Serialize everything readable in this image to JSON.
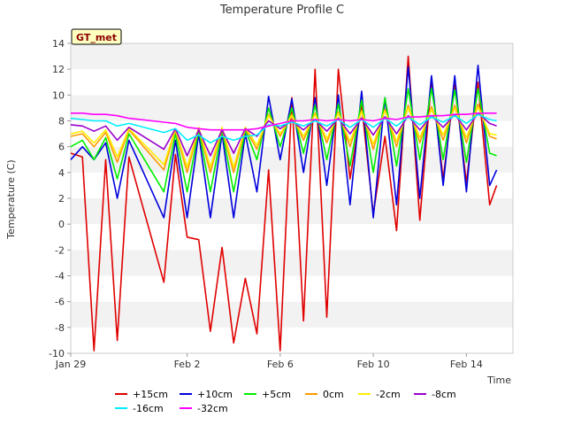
{
  "chart_data": {
    "type": "line",
    "title": "Temperature Profile C",
    "xlabel": "Time",
    "ylabel": "Temperature (C)",
    "badge": "GT_met",
    "x_unit": "date",
    "x_range": [
      "Jan 29",
      "Feb 16"
    ],
    "ylim": [
      -10,
      14
    ],
    "yticks": [
      -10,
      -8,
      -6,
      -4,
      -2,
      0,
      2,
      4,
      6,
      8,
      10,
      12,
      14
    ],
    "xticks": [
      "Jan 29",
      "Feb 2",
      "Feb 6",
      "Feb 10",
      "Feb 14"
    ],
    "grid": "horizontal bands",
    "legend_position": "bottom",
    "x": [
      "Jan 29",
      "Jan 29.5",
      "Jan 30",
      "Jan 30.5",
      "Jan 31",
      "Jan 31.5",
      "Feb 1",
      "Feb 1.5",
      "Feb 2",
      "Feb 2.5",
      "Feb 3",
      "Feb 3.5",
      "Feb 4",
      "Feb 4.5",
      "Feb 5",
      "Feb 5.5",
      "Feb 6",
      "Feb 6.5",
      "Feb 7",
      "Feb 7.5",
      "Feb 8",
      "Feb 8.5",
      "Feb 9",
      "Feb 9.5",
      "Feb 10",
      "Feb 10.5",
      "Feb 11",
      "Feb 11.5",
      "Feb 12",
      "Feb 12.5",
      "Feb 13",
      "Feb 13.5",
      "Feb 14",
      "Feb 14.5",
      "Feb 15",
      "Feb 15.3"
    ],
    "series": [
      {
        "name": "+15cm",
        "color": "#e00000",
        "values": [
          5.5,
          5.2,
          -9.8,
          5.0,
          -9.0,
          5.2,
          -4.5,
          5.4,
          -1.0,
          -1.2,
          -8.3,
          -1.8,
          -9.2,
          -4.2,
          -8.5,
          4.2,
          -9.8,
          9.8,
          -7.5,
          12.0,
          -7.2,
          12.0,
          3.5,
          9.2,
          0.8,
          6.8,
          -0.5,
          13.0,
          0.3,
          11.2,
          3.5,
          10.8,
          3.2,
          11.0,
          1.5,
          3.0
        ]
      },
      {
        "name": "+10cm",
        "color": "#0000dd",
        "values": [
          5.0,
          6.0,
          5.0,
          6.3,
          2.0,
          6.5,
          0.5,
          6.5,
          0.5,
          7.0,
          0.5,
          7.0,
          0.5,
          7.0,
          2.5,
          9.9,
          5.0,
          9.7,
          4.0,
          9.8,
          3.0,
          10.0,
          1.5,
          10.3,
          0.5,
          9.8,
          1.5,
          12.2,
          2.0,
          11.5,
          3.0,
          11.5,
          2.5,
          12.3,
          3.0,
          4.2
        ]
      },
      {
        "name": "+5cm",
        "color": "#00ee00",
        "values": [
          6.0,
          6.5,
          5.0,
          6.7,
          3.5,
          7.0,
          2.5,
          7.0,
          2.5,
          7.3,
          2.5,
          7.3,
          2.5,
          7.3,
          5.0,
          9.0,
          6.0,
          9.0,
          5.5,
          9.2,
          5.0,
          9.3,
          4.5,
          9.6,
          4.0,
          9.8,
          4.5,
          10.5,
          5.0,
          10.5,
          5.0,
          10.4,
          4.8,
          10.5,
          5.5,
          5.3
        ]
      },
      {
        "name": "0cm",
        "color": "#ff9900",
        "values": [
          6.8,
          7.0,
          6.0,
          7.1,
          4.8,
          7.3,
          4.2,
          7.3,
          4.0,
          7.4,
          4.0,
          7.4,
          4.0,
          7.4,
          5.8,
          8.5,
          6.8,
          8.5,
          6.5,
          8.6,
          6.3,
          8.7,
          6.0,
          8.8,
          5.8,
          8.9,
          6.0,
          9.2,
          6.3,
          9.1,
          6.5,
          9.2,
          6.3,
          9.3,
          6.8,
          6.6
        ]
      },
      {
        "name": "-2cm",
        "color": "#ffee00",
        "values": [
          7.0,
          7.2,
          6.3,
          7.3,
          5.2,
          7.4,
          4.6,
          7.4,
          4.4,
          7.5,
          4.4,
          7.5,
          4.4,
          7.5,
          6.1,
          8.4,
          7.0,
          8.4,
          6.8,
          8.5,
          6.6,
          8.6,
          6.4,
          8.7,
          6.2,
          8.8,
          6.4,
          9.0,
          6.7,
          8.9,
          6.9,
          9.0,
          6.7,
          9.1,
          7.0,
          6.9
        ]
      },
      {
        "name": "-8cm",
        "color": "#9900cc",
        "values": [
          7.7,
          7.6,
          7.2,
          7.6,
          6.5,
          7.5,
          5.8,
          7.4,
          5.3,
          7.3,
          5.3,
          7.3,
          5.5,
          7.4,
          6.8,
          8.0,
          7.4,
          8.0,
          7.3,
          8.1,
          7.2,
          8.2,
          7.0,
          8.2,
          6.9,
          8.3,
          7.0,
          8.4,
          7.3,
          8.4,
          7.5,
          8.5,
          7.3,
          8.6,
          7.8,
          7.6
        ]
      },
      {
        "name": "-16cm",
        "color": "#00eeff",
        "values": [
          8.2,
          8.1,
          8.0,
          8.0,
          7.6,
          7.8,
          7.1,
          7.4,
          6.5,
          6.9,
          6.3,
          6.8,
          6.5,
          6.8,
          6.9,
          7.7,
          7.6,
          7.9,
          7.6,
          8.0,
          7.6,
          8.1,
          7.5,
          8.1,
          7.5,
          8.2,
          7.6,
          8.3,
          7.7,
          8.3,
          7.9,
          8.4,
          7.8,
          8.5,
          8.1,
          8.0
        ]
      },
      {
        "name": "-32cm",
        "color": "#ff00ff",
        "values": [
          8.6,
          8.6,
          8.5,
          8.5,
          8.4,
          8.2,
          7.9,
          7.8,
          7.5,
          7.4,
          7.3,
          7.3,
          7.3,
          7.3,
          7.4,
          7.6,
          7.8,
          8.0,
          8.0,
          8.1,
          8.0,
          8.1,
          8.0,
          8.1,
          8.0,
          8.2,
          8.1,
          8.3,
          8.3,
          8.4,
          8.4,
          8.5,
          8.5,
          8.6,
          8.6,
          8.6
        ]
      }
    ]
  }
}
